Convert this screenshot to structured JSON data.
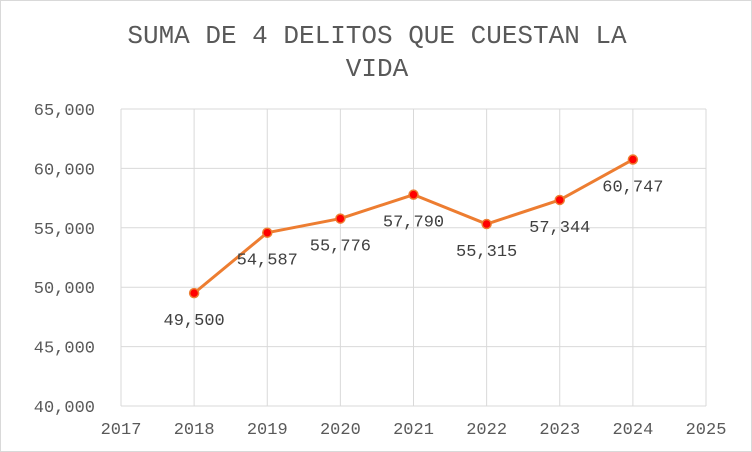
{
  "chart_data": {
    "type": "line",
    "title_lines": [
      "SUMA DE 4 DELITOS QUE CUESTAN LA",
      "VIDA"
    ],
    "xlabel": "",
    "ylabel": "",
    "xlim": [
      2017,
      2025
    ],
    "ylim": [
      40000,
      65000
    ],
    "x_ticks": [
      "2017",
      "2018",
      "2019",
      "2020",
      "2021",
      "2022",
      "2023",
      "2024",
      "2025"
    ],
    "y_ticks": [
      "40,000",
      "45,000",
      "50,000",
      "55,000",
      "60,000",
      "65,000"
    ],
    "grid": true,
    "legend": "none",
    "series": [
      {
        "x": [
          2018,
          2019,
          2020,
          2021,
          2022,
          2023,
          2024
        ],
        "values": [
          49500,
          54587,
          55776,
          57790,
          55315,
          57344,
          60747
        ],
        "data_labels": [
          "49,500",
          "54,587",
          "55,776",
          "57,790",
          "55,315",
          "57,344",
          "60,747"
        ],
        "line_color": "#ED7D31",
        "marker_color": "#FF0000"
      }
    ]
  }
}
